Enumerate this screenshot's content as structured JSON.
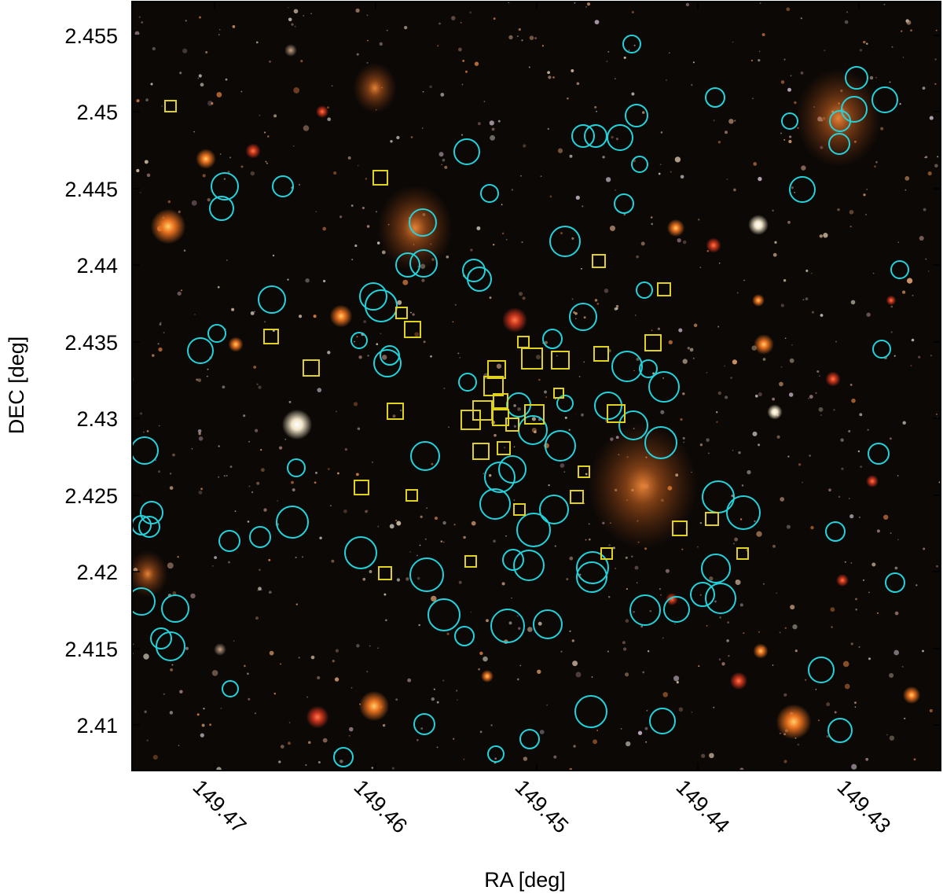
{
  "image": {
    "x_axis_label": "RA [deg]",
    "y_axis_label": "DEC [deg]",
    "x_ticks": [
      "149.47",
      "149.46",
      "149.45",
      "149.44",
      "149.43"
    ],
    "y_ticks": [
      "2.455",
      "2.45",
      "2.445",
      "2.44",
      "2.435",
      "2.43",
      "2.425",
      "2.42",
      "2.415",
      "2.41"
    ],
    "colors": {
      "sky": "#0b0806",
      "circle_marker": "#22d3dc",
      "square_marker": "#e0d21c",
      "galaxy_orange": "#e9711f",
      "galaxy_red": "#c2321b",
      "frame": "#000000"
    },
    "marker_legend_meaning": "",
    "scene": "color-composite sky image of a galaxy field with cyan circle markers and yellow square markers"
  }
}
